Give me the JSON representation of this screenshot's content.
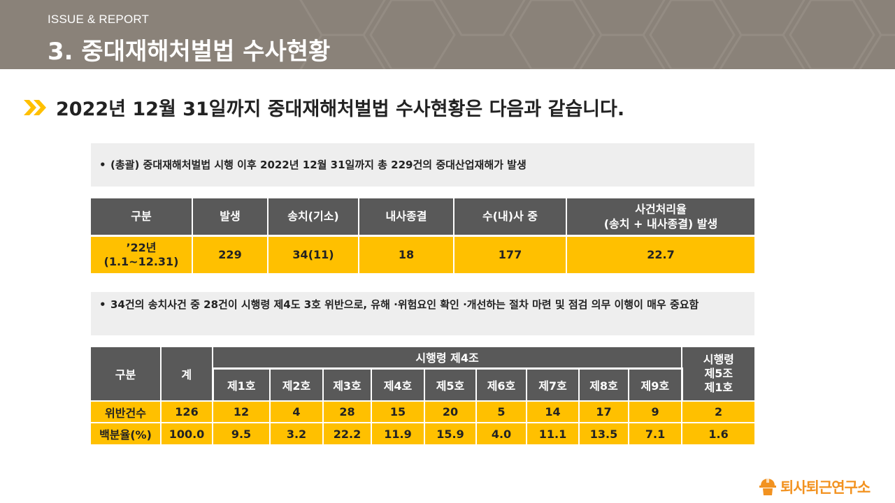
{
  "header": {
    "eyebrow": "ISSUE & REPORT",
    "title": "3. 중대재해처벌법 수사현황"
  },
  "subheading": "2022년 12월 31일까지 중대재해처벌법 수사현황은 다음과 같습니다.",
  "note1": {
    "bullet": "•",
    "text": "(총괄) 중대재해처벌법 시행 이후 2022년 12월 31일까지 총 229건의 중대산업재해가 발생"
  },
  "table1": {
    "headers": [
      "구분",
      "발생",
      "송치(기소)",
      "내사종결",
      "수(내)사 중",
      "사건처리율\n(송치 + 내사종결) 발생"
    ],
    "row": [
      "’22년\n(1.1~12.31)",
      "229",
      "34(11)",
      "18",
      "177",
      "22.7"
    ]
  },
  "note2": {
    "bullet": "•",
    "text": "34건의 송치사건 중 28건이 시행령 제4도 3호 위반으로, 유해 ·위험요인 확인 ·개선하는 절차 마련 및 점검 의무 이행이 매우 중요함"
  },
  "table2": {
    "col_label": "구분",
    "total_label": "계",
    "group_label": "시행령 제4조",
    "sub_headers": [
      "제1호",
      "제2호",
      "제3호",
      "제4호",
      "제5호",
      "제6호",
      "제7호",
      "제8호",
      "제9호"
    ],
    "last_header": "시행령\n제5조\n제1호",
    "rows": [
      {
        "label": "위반건수",
        "total": "126",
        "values": [
          "12",
          "4",
          "28",
          "15",
          "20",
          "5",
          "14",
          "17",
          "9"
        ],
        "last": "2"
      },
      {
        "label": "백분율(%)",
        "total": "100.0",
        "values": [
          "9.5",
          "3.2",
          "22.2",
          "11.9",
          "15.9",
          "4.0",
          "11.1",
          "13.5",
          "7.1"
        ],
        "last": "1.6"
      }
    ]
  },
  "logo": {
    "text": "퇴사퇴근연구소",
    "icon": "worker-helmet-icon"
  },
  "colors": {
    "header_bg": "#8a8279",
    "table_header": "#595959",
    "accent": "#ffc000",
    "note_bg": "#eeeeee",
    "logo": "#f29220"
  }
}
